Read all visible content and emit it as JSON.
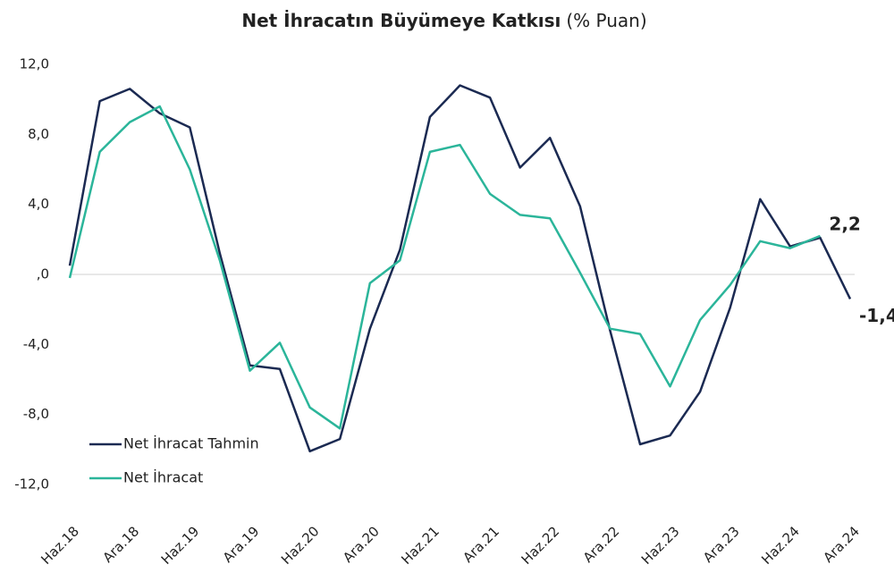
{
  "chart_data": {
    "type": "line",
    "title": "Net İhracatın Büyümeye Katkısı",
    "subtitle": "(% Puan)",
    "categories": [
      "Haz.18",
      null,
      "Ara.18",
      null,
      "Haz.19",
      null,
      "Ara.19",
      null,
      "Haz.20",
      null,
      "Ara.20",
      null,
      "Haz.21",
      null,
      "Ara.21",
      null,
      "Haz.22",
      null,
      "Ara.22",
      null,
      "Haz.23",
      null,
      "Ara.23",
      null,
      "Haz.24",
      null,
      "Ara.24"
    ],
    "series": [
      {
        "name": "Net İhracat Tahmin",
        "color": "#1b2a52",
        "values": [
          0.5,
          9.9,
          10.6,
          9.2,
          8.4,
          1.2,
          -5.2,
          -5.4,
          -10.1,
          -9.4,
          -3.1,
          1.4,
          9.0,
          10.8,
          10.1,
          6.1,
          7.8,
          3.9,
          -3.2,
          -9.7,
          -9.2,
          -6.7,
          -1.9,
          4.3,
          1.6,
          2.1,
          -1.4
        ],
        "value_labels": [
          null,
          null,
          null,
          null,
          null,
          null,
          null,
          null,
          null,
          null,
          null,
          null,
          null,
          null,
          null,
          null,
          null,
          null,
          null,
          null,
          null,
          null,
          null,
          null,
          null,
          null,
          "-1,4"
        ]
      },
      {
        "name": "Net İhracat",
        "color": "#2bb59a",
        "values": [
          -0.2,
          7.0,
          8.7,
          9.6,
          6.0,
          0.8,
          -5.5,
          -3.9,
          -7.6,
          -8.8,
          -0.5,
          0.8,
          7.0,
          7.4,
          4.6,
          3.4,
          3.2,
          0.1,
          -3.1,
          -3.4,
          -6.4,
          -2.6,
          -0.6,
          1.9,
          1.5,
          2.2,
          null
        ],
        "value_labels": [
          null,
          null,
          null,
          null,
          null,
          null,
          null,
          null,
          null,
          null,
          null,
          null,
          null,
          null,
          null,
          null,
          null,
          null,
          null,
          null,
          null,
          null,
          null,
          null,
          null,
          "2,2",
          null
        ]
      }
    ],
    "ylim": [
      -12,
      12
    ],
    "yticks": [
      {
        "value": -12,
        "label": "-12,0"
      },
      {
        "value": -8,
        "label": "-8,0"
      },
      {
        "value": -4,
        "label": "-4,0"
      },
      {
        "value": 0,
        "label": ",0"
      },
      {
        "value": 4,
        "label": "4,0"
      },
      {
        "value": 8,
        "label": "8,0"
      },
      {
        "value": 12,
        "label": "12,0"
      }
    ],
    "zero_line": true,
    "grid": false,
    "legend": "lower left"
  }
}
